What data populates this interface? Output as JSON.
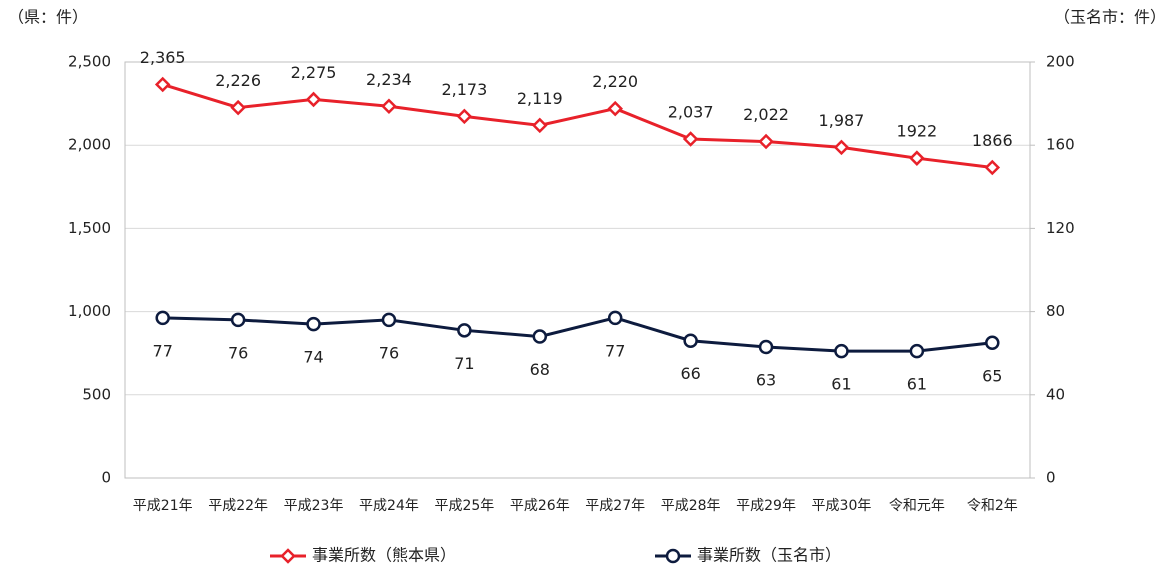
{
  "chart_data": {
    "type": "line",
    "y_axis_label": "（県：件）",
    "y2_axis_label": "（玉名市：件）",
    "categories": [
      "平成21年",
      "平成22年",
      "平成23年",
      "平成24年",
      "平成25年",
      "平成26年",
      "平成27年",
      "平成28年",
      "平成29年",
      "平成30年",
      "令和元年",
      "令和2年"
    ],
    "series": [
      {
        "name": "事業所数（熊本県）",
        "color": "#e8212a",
        "marker": "diamond",
        "values": [
          2365,
          2226,
          2275,
          2234,
          2173,
          2119,
          2220,
          2037,
          2022,
          1987,
          1922,
          1866
        ],
        "value_labels": [
          "2,365",
          "2,226",
          "2,275",
          "2,234",
          "2,173",
          "2,119",
          "2,220",
          "2,037",
          "2,022",
          "1,987",
          "1922",
          "1866"
        ]
      },
      {
        "name": "事業所数（玉名市）",
        "color": "#0d1b3e",
        "marker": "circle",
        "axis": "y2",
        "values": [
          77,
          76,
          74,
          76,
          71,
          68,
          77,
          66,
          63,
          61,
          61,
          65
        ]
      }
    ],
    "ylim": [
      0,
      2500
    ],
    "yticks": [
      0,
      500,
      {
        "value": 1000,
        "label": "1,000"
      },
      {
        "value": 1500,
        "label": "1,500"
      },
      {
        "value": 2000,
        "label": "2,000"
      },
      {
        "value": 2500,
        "label": "2,500"
      }
    ],
    "y2lim": [
      0,
      200
    ],
    "y2ticks": [
      0,
      40,
      80,
      120,
      160,
      200
    ],
    "grid": true,
    "legend": "bottom"
  }
}
